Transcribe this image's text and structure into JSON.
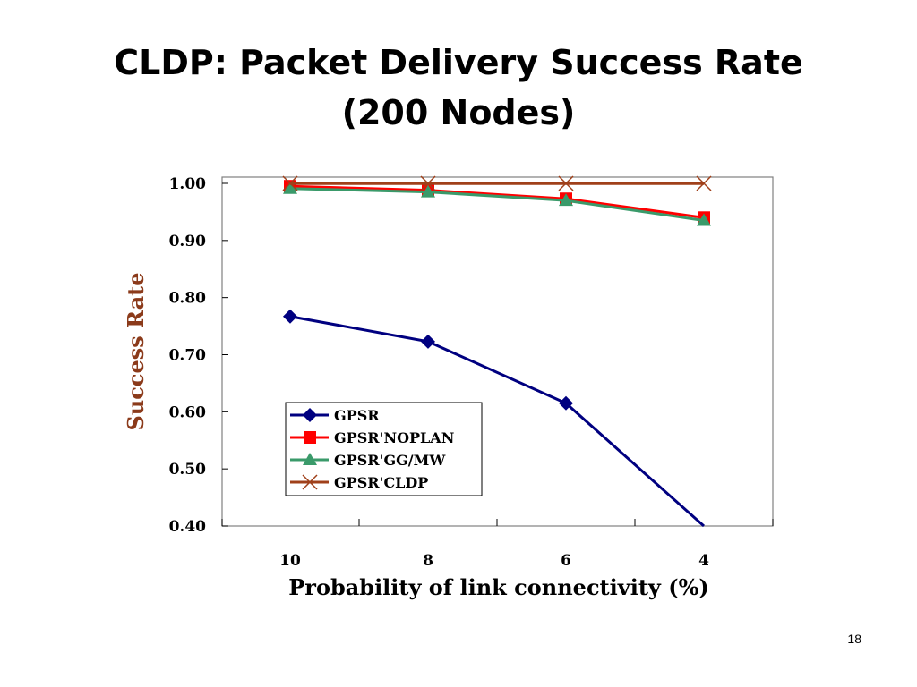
{
  "slide": {
    "title_line1": "CLDP: Packet Delivery Success Rate",
    "title_line2": "(200 Nodes)",
    "page_number": "18"
  },
  "chart_data": {
    "type": "line",
    "title": "",
    "xlabel": "Probability of link connectivity (%)",
    "ylabel": "Success Rate",
    "categories": [
      "10",
      "8",
      "6",
      "4"
    ],
    "ylim": [
      0.4,
      1.0
    ],
    "yticks": [
      "1.00",
      "0.90",
      "0.80",
      "0.70",
      "0.60",
      "0.50",
      "0.40"
    ],
    "ytick_values": [
      1.0,
      0.9,
      0.8,
      0.7,
      0.6,
      0.5,
      0.4
    ],
    "grid": false,
    "legend_position": "bottom-center",
    "series": [
      {
        "name": "GPSR",
        "values": [
          0.767,
          0.723,
          0.615,
          0.4
        ],
        "color": "#000080",
        "marker": "diamond"
      },
      {
        "name": "GPSR'NOPLAN",
        "values": [
          0.995,
          0.988,
          0.973,
          0.94
        ],
        "color": "#ff0000",
        "marker": "square"
      },
      {
        "name": "GPSR'GG/MW",
        "values": [
          0.991,
          0.985,
          0.97,
          0.935
        ],
        "color": "#3a9a6a",
        "marker": "triangle"
      },
      {
        "name": "GPSR'CLDP",
        "values": [
          1.0,
          1.0,
          1.0,
          1.0
        ],
        "color": "#a0401a",
        "marker": "x"
      }
    ]
  }
}
